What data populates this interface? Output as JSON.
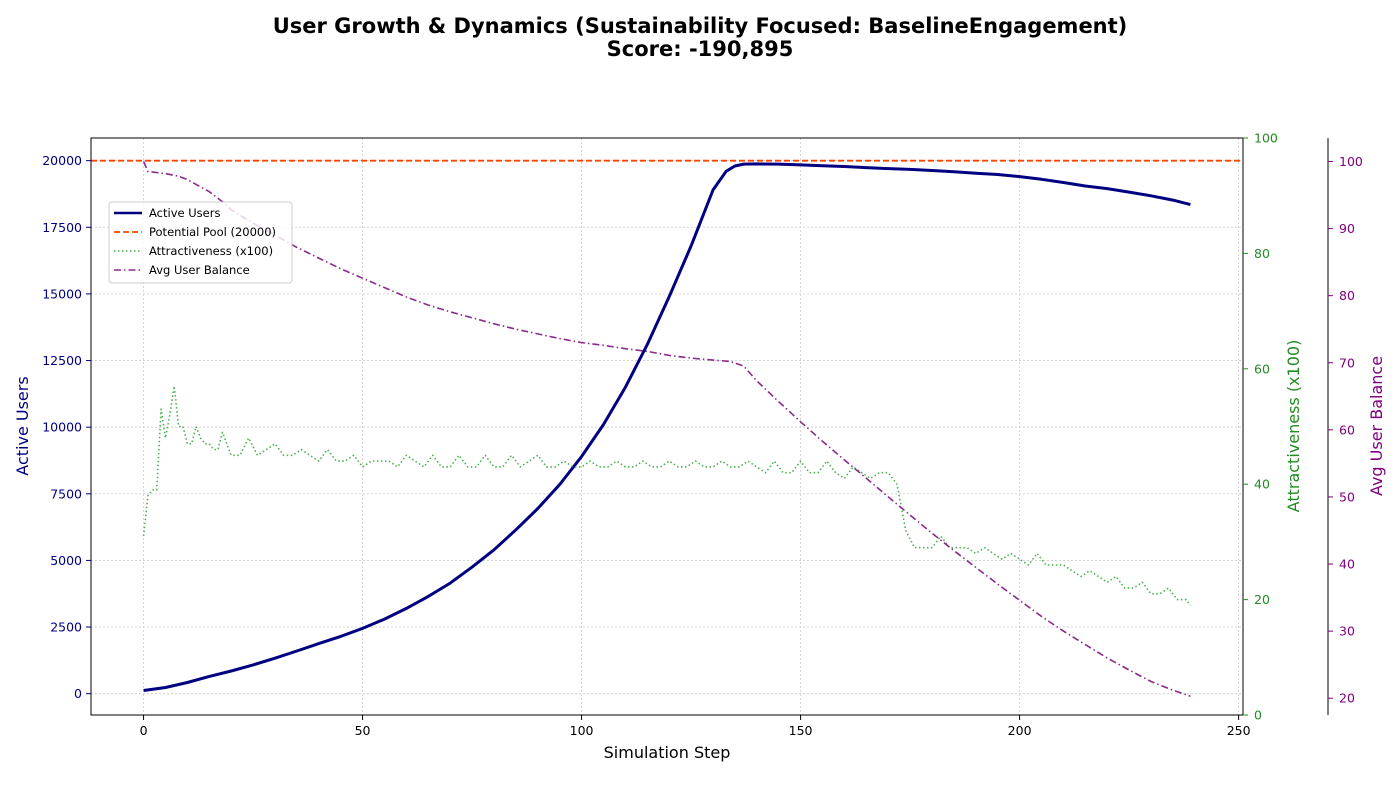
{
  "chart_data": {
    "type": "line",
    "title": "User Growth & Dynamics (Sustainability Focused: BaselineEngagement)",
    "subtitle": "Score: -190,895",
    "xlabel": "Simulation Step",
    "ylabel_left": "Active Users",
    "ylabel_right1": "Attractiveness (x100)",
    "ylabel_right2": "Avg User Balance",
    "xlim": [
      -12,
      251
    ],
    "ylim_left": [
      -800,
      20850
    ],
    "ylim_right1": [
      0,
      100
    ],
    "ylim_right2": [
      17.5,
      103.5
    ],
    "x_ticks": [
      0,
      50,
      100,
      150,
      200,
      250
    ],
    "y_left_ticks": [
      0,
      2500,
      5000,
      7500,
      10000,
      12500,
      15000,
      17500,
      20000
    ],
    "y_right1_ticks": [
      0,
      20,
      40,
      60,
      80,
      100
    ],
    "y_right2_ticks": [
      20,
      30,
      40,
      50,
      60,
      70,
      80,
      90,
      100
    ],
    "grid": true,
    "legend_position": "upper-left",
    "colors": {
      "active_users": "#000080",
      "potential_pool": "#ff4500",
      "attractiveness": "#4caf50",
      "avg_balance": "#8b2a8b",
      "left_axis": "#000080",
      "right1_axis": "#228b22",
      "right2_axis": "#800080"
    },
    "series": [
      {
        "name": "Active Users",
        "axis": "left",
        "style": "solid",
        "x": [
          0,
          5,
          10,
          15,
          20,
          25,
          30,
          35,
          40,
          45,
          50,
          55,
          60,
          65,
          70,
          75,
          80,
          85,
          90,
          95,
          100,
          105,
          110,
          115,
          120,
          125,
          130,
          133,
          135,
          137,
          140,
          145,
          150,
          155,
          160,
          165,
          170,
          175,
          180,
          185,
          190,
          195,
          200,
          205,
          210,
          215,
          220,
          225,
          230,
          235,
          239
        ],
        "y": [
          120,
          230,
          420,
          650,
          850,
          1080,
          1330,
          1600,
          1880,
          2150,
          2450,
          2800,
          3200,
          3650,
          4150,
          4750,
          5400,
          6150,
          6950,
          7850,
          8900,
          10100,
          11500,
          13100,
          14900,
          16800,
          18900,
          19600,
          19800,
          19870,
          19880,
          19870,
          19840,
          19810,
          19780,
          19740,
          19700,
          19670,
          19630,
          19580,
          19530,
          19480,
          19400,
          19300,
          19180,
          19050,
          18950,
          18820,
          18680,
          18520,
          18350
        ]
      },
      {
        "name": "Potential Pool (20000)",
        "axis": "left",
        "style": "dashed",
        "x": [
          -12,
          251
        ],
        "y": [
          20000,
          20000
        ]
      },
      {
        "name": "Attractiveness (x100)",
        "axis": "right1",
        "style": "dotted",
        "x": [
          0,
          1,
          2,
          3,
          4,
          5,
          6,
          7,
          8,
          9,
          10,
          11,
          12,
          13,
          14,
          15,
          16,
          17,
          18,
          19,
          20,
          22,
          24,
          26,
          28,
          30,
          32,
          34,
          36,
          38,
          40,
          42,
          44,
          46,
          48,
          50,
          52,
          54,
          56,
          58,
          60,
          62,
          64,
          66,
          68,
          70,
          72,
          74,
          76,
          78,
          80,
          82,
          84,
          86,
          88,
          90,
          92,
          94,
          96,
          98,
          100,
          102,
          104,
          106,
          108,
          110,
          112,
          114,
          116,
          118,
          120,
          122,
          124,
          126,
          128,
          130,
          132,
          134,
          136,
          138,
          140,
          142,
          144,
          146,
          148,
          150,
          152,
          154,
          156,
          158,
          160,
          162,
          164,
          166,
          168,
          170,
          172,
          174,
          176,
          178,
          180,
          182,
          184,
          186,
          188,
          190,
          192,
          194,
          196,
          198,
          200,
          202,
          204,
          206,
          208,
          210,
          212,
          214,
          216,
          218,
          220,
          222,
          224,
          226,
          228,
          230,
          232,
          234,
          236,
          238,
          239
        ],
        "y": [
          31,
          38,
          39,
          39,
          53,
          48,
          52,
          57,
          50,
          50,
          47,
          47,
          50,
          48,
          47,
          47,
          46,
          46,
          49,
          47,
          45,
          45,
          48,
          45,
          46,
          47,
          45,
          45,
          46,
          45,
          44,
          46,
          44,
          44,
          45,
          43,
          44,
          44,
          44,
          43,
          45,
          44,
          43,
          45,
          43,
          43,
          45,
          43,
          43,
          45,
          43,
          43,
          45,
          43,
          44,
          45,
          43,
          43,
          44,
          43,
          43,
          44,
          43,
          43,
          44,
          43,
          43,
          44,
          43,
          43,
          44,
          43,
          43,
          44,
          43,
          43,
          44,
          43,
          43,
          44,
          43,
          42,
          44,
          42,
          42,
          44,
          42,
          42,
          44,
          42,
          41,
          43,
          42,
          41,
          42,
          42,
          40,
          32,
          29,
          29,
          29,
          31,
          29,
          29,
          29,
          28,
          29,
          28,
          27,
          28,
          27,
          26,
          28,
          26,
          26,
          26,
          25,
          24,
          25,
          24,
          23,
          24,
          22,
          22,
          23,
          21,
          21,
          22,
          20,
          20,
          19
        ]
      },
      {
        "name": "Avg User Balance",
        "axis": "right2",
        "style": "dashdot",
        "x": [
          0,
          1,
          5,
          8,
          10,
          15,
          18,
          20,
          25,
          30,
          35,
          40,
          45,
          50,
          55,
          60,
          65,
          70,
          75,
          80,
          85,
          90,
          95,
          100,
          105,
          110,
          115,
          120,
          125,
          130,
          134,
          137,
          140,
          145,
          150,
          155,
          160,
          165,
          170,
          175,
          180,
          185,
          190,
          195,
          200,
          205,
          210,
          215,
          220,
          225,
          230,
          235,
          239
        ],
        "y": [
          100,
          98.5,
          98.2,
          97.8,
          97.3,
          95.5,
          94,
          92.8,
          90.8,
          89,
          87.2,
          85.6,
          84,
          82.6,
          81.2,
          79.8,
          78.6,
          77.6,
          76.7,
          75.8,
          75,
          74.3,
          73.6,
          73,
          72.6,
          72.1,
          71.7,
          71.1,
          70.7,
          70.4,
          70.2,
          69.5,
          67.3,
          64.2,
          61.2,
          58.3,
          55.5,
          52.8,
          50,
          47.3,
          44.6,
          42,
          39.5,
          37,
          34.6,
          32.2,
          30,
          28,
          26,
          24.2,
          22.5,
          21.2,
          20.3
        ]
      }
    ],
    "legend": [
      {
        "label": "Active Users"
      },
      {
        "label": "Potential Pool (20000)"
      },
      {
        "label": "Attractiveness (x100)"
      },
      {
        "label": "Avg User Balance"
      }
    ]
  }
}
